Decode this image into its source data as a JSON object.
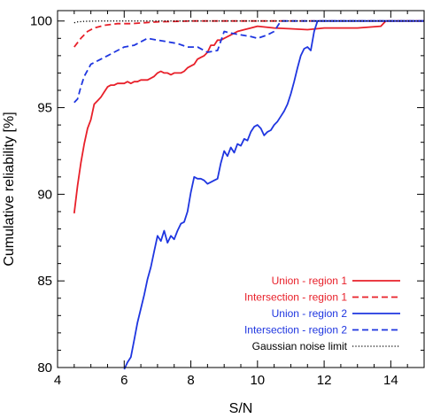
{
  "chart_data": {
    "type": "line",
    "title": "",
    "xlabel": "S/N",
    "ylabel": "Cumulative reliability [%]",
    "xlim": [
      4,
      15
    ],
    "ylim": [
      80,
      100.6
    ],
    "x_ticks": [
      4,
      6,
      8,
      10,
      12,
      14
    ],
    "y_ticks": [
      80,
      85,
      90,
      95,
      100
    ],
    "x_ticks_all": [
      4,
      4.5,
      5,
      5.5,
      6,
      6.5,
      7,
      7.5,
      8,
      8.5,
      9,
      9.5,
      10,
      10.5,
      11,
      11.5,
      12,
      12.5,
      13,
      13.5,
      14,
      14.5,
      15
    ],
    "y_ticks_all": [
      80,
      81,
      82,
      83,
      84,
      85,
      86,
      87,
      88,
      89,
      90,
      91,
      92,
      93,
      94,
      95,
      96,
      97,
      98,
      99,
      100
    ],
    "grid": false,
    "legend_position": "bottom-right",
    "series": [
      {
        "name": "Union - region 1",
        "color": "#e8202a",
        "style": "solid",
        "x": [
          4.5,
          4.6,
          4.7,
          4.8,
          4.9,
          5.0,
          5.1,
          5.2,
          5.3,
          5.4,
          5.5,
          5.6,
          5.7,
          5.8,
          5.9,
          6.0,
          6.1,
          6.2,
          6.3,
          6.4,
          6.5,
          6.6,
          6.7,
          6.8,
          6.9,
          7.0,
          7.1,
          7.2,
          7.3,
          7.4,
          7.5,
          7.6,
          7.7,
          7.8,
          7.9,
          8.0,
          8.1,
          8.2,
          8.3,
          8.4,
          8.5,
          8.6,
          8.7,
          8.8,
          8.9,
          9.0,
          9.2,
          9.4,
          9.6,
          9.8,
          10.0,
          10.5,
          11.0,
          11.5,
          12.0,
          12.5,
          13.0,
          13.7,
          13.85,
          14.0,
          15.0
        ],
        "y": [
          88.9,
          90.5,
          91.8,
          92.9,
          93.8,
          94.3,
          95.2,
          95.4,
          95.6,
          95.9,
          96.2,
          96.3,
          96.3,
          96.4,
          96.4,
          96.4,
          96.5,
          96.4,
          96.5,
          96.5,
          96.6,
          96.6,
          96.6,
          96.7,
          96.8,
          97.0,
          97.1,
          97.0,
          97.0,
          96.9,
          97.0,
          97.0,
          97.0,
          97.1,
          97.3,
          97.4,
          97.5,
          97.8,
          97.9,
          98.0,
          98.2,
          98.6,
          98.6,
          98.9,
          98.9,
          99.0,
          99.2,
          99.4,
          99.5,
          99.6,
          99.7,
          99.6,
          99.55,
          99.5,
          99.6,
          99.6,
          99.6,
          99.7,
          100.0,
          100.0,
          100.0
        ]
      },
      {
        "name": "Intersection - region 1",
        "color": "#e8202a",
        "style": "dashed",
        "x": [
          4.5,
          4.7,
          4.9,
          5.1,
          5.4,
          5.8,
          6.2,
          6.6,
          7.0,
          8.0,
          9.0,
          10.0,
          12.0,
          15.0
        ],
        "y": [
          98.5,
          99.0,
          99.4,
          99.6,
          99.75,
          99.85,
          99.85,
          99.9,
          99.95,
          100.0,
          100.0,
          100.0,
          100.0,
          100.0
        ]
      },
      {
        "name": "Union - region 2",
        "color": "#1f36e0",
        "style": "solid",
        "x": [
          6.0,
          6.1,
          6.2,
          6.3,
          6.4,
          6.5,
          6.6,
          6.7,
          6.8,
          6.9,
          7.0,
          7.1,
          7.2,
          7.3,
          7.4,
          7.5,
          7.6,
          7.7,
          7.8,
          7.9,
          8.0,
          8.1,
          8.2,
          8.3,
          8.4,
          8.5,
          8.6,
          8.7,
          8.8,
          8.9,
          9.0,
          9.1,
          9.2,
          9.3,
          9.4,
          9.5,
          9.6,
          9.7,
          9.8,
          9.9,
          10.0,
          10.1,
          10.2,
          10.3,
          10.4,
          10.5,
          10.6,
          10.7,
          10.8,
          10.9,
          11.0,
          11.1,
          11.2,
          11.3,
          11.4,
          11.5,
          11.6,
          11.7,
          11.8,
          12.0,
          15.0
        ],
        "y": [
          79.9,
          80.3,
          80.6,
          81.6,
          82.6,
          83.4,
          84.2,
          85.1,
          85.8,
          86.7,
          87.6,
          87.3,
          87.9,
          87.2,
          87.6,
          87.4,
          87.9,
          88.3,
          88.4,
          89.0,
          90.1,
          91.0,
          90.9,
          90.9,
          90.8,
          90.6,
          90.7,
          90.8,
          90.9,
          91.8,
          92.5,
          92.2,
          92.7,
          92.4,
          92.9,
          92.8,
          93.2,
          93.1,
          93.6,
          93.9,
          94.0,
          93.8,
          93.4,
          93.6,
          93.7,
          94.0,
          94.2,
          94.5,
          94.8,
          95.2,
          95.8,
          96.5,
          97.3,
          98.0,
          98.4,
          98.5,
          98.3,
          99.4,
          100.0,
          100.0,
          100.0
        ]
      },
      {
        "name": "Intersection - region 2",
        "color": "#1f36e0",
        "style": "dashed",
        "x": [
          4.5,
          4.6,
          4.7,
          4.8,
          5.0,
          5.2,
          5.5,
          5.8,
          6.0,
          6.3,
          6.5,
          6.7,
          7.0,
          7.3,
          7.6,
          7.9,
          8.2,
          8.5,
          8.8,
          9.0,
          9.2,
          9.5,
          9.8,
          10.0,
          10.3,
          10.5,
          10.7,
          11.0,
          12.0,
          15.0
        ],
        "y": [
          95.3,
          95.5,
          96.2,
          96.8,
          97.5,
          97.7,
          98.0,
          98.3,
          98.5,
          98.6,
          98.8,
          99.0,
          98.9,
          98.8,
          98.7,
          98.5,
          98.5,
          98.2,
          98.3,
          99.4,
          99.3,
          99.2,
          99.1,
          99.0,
          99.2,
          99.4,
          100.0,
          100.0,
          100.0,
          100.0
        ]
      },
      {
        "name": "Gaussian noise limit",
        "color": "#000000",
        "style": "dotted",
        "x": [
          4.5,
          4.6,
          4.8,
          5.0,
          5.3,
          6.0,
          7.0,
          10.0,
          15.0
        ],
        "y": [
          99.9,
          99.95,
          99.98,
          99.99,
          100.0,
          100.0,
          100.0,
          100.0,
          100.0
        ]
      }
    ]
  }
}
